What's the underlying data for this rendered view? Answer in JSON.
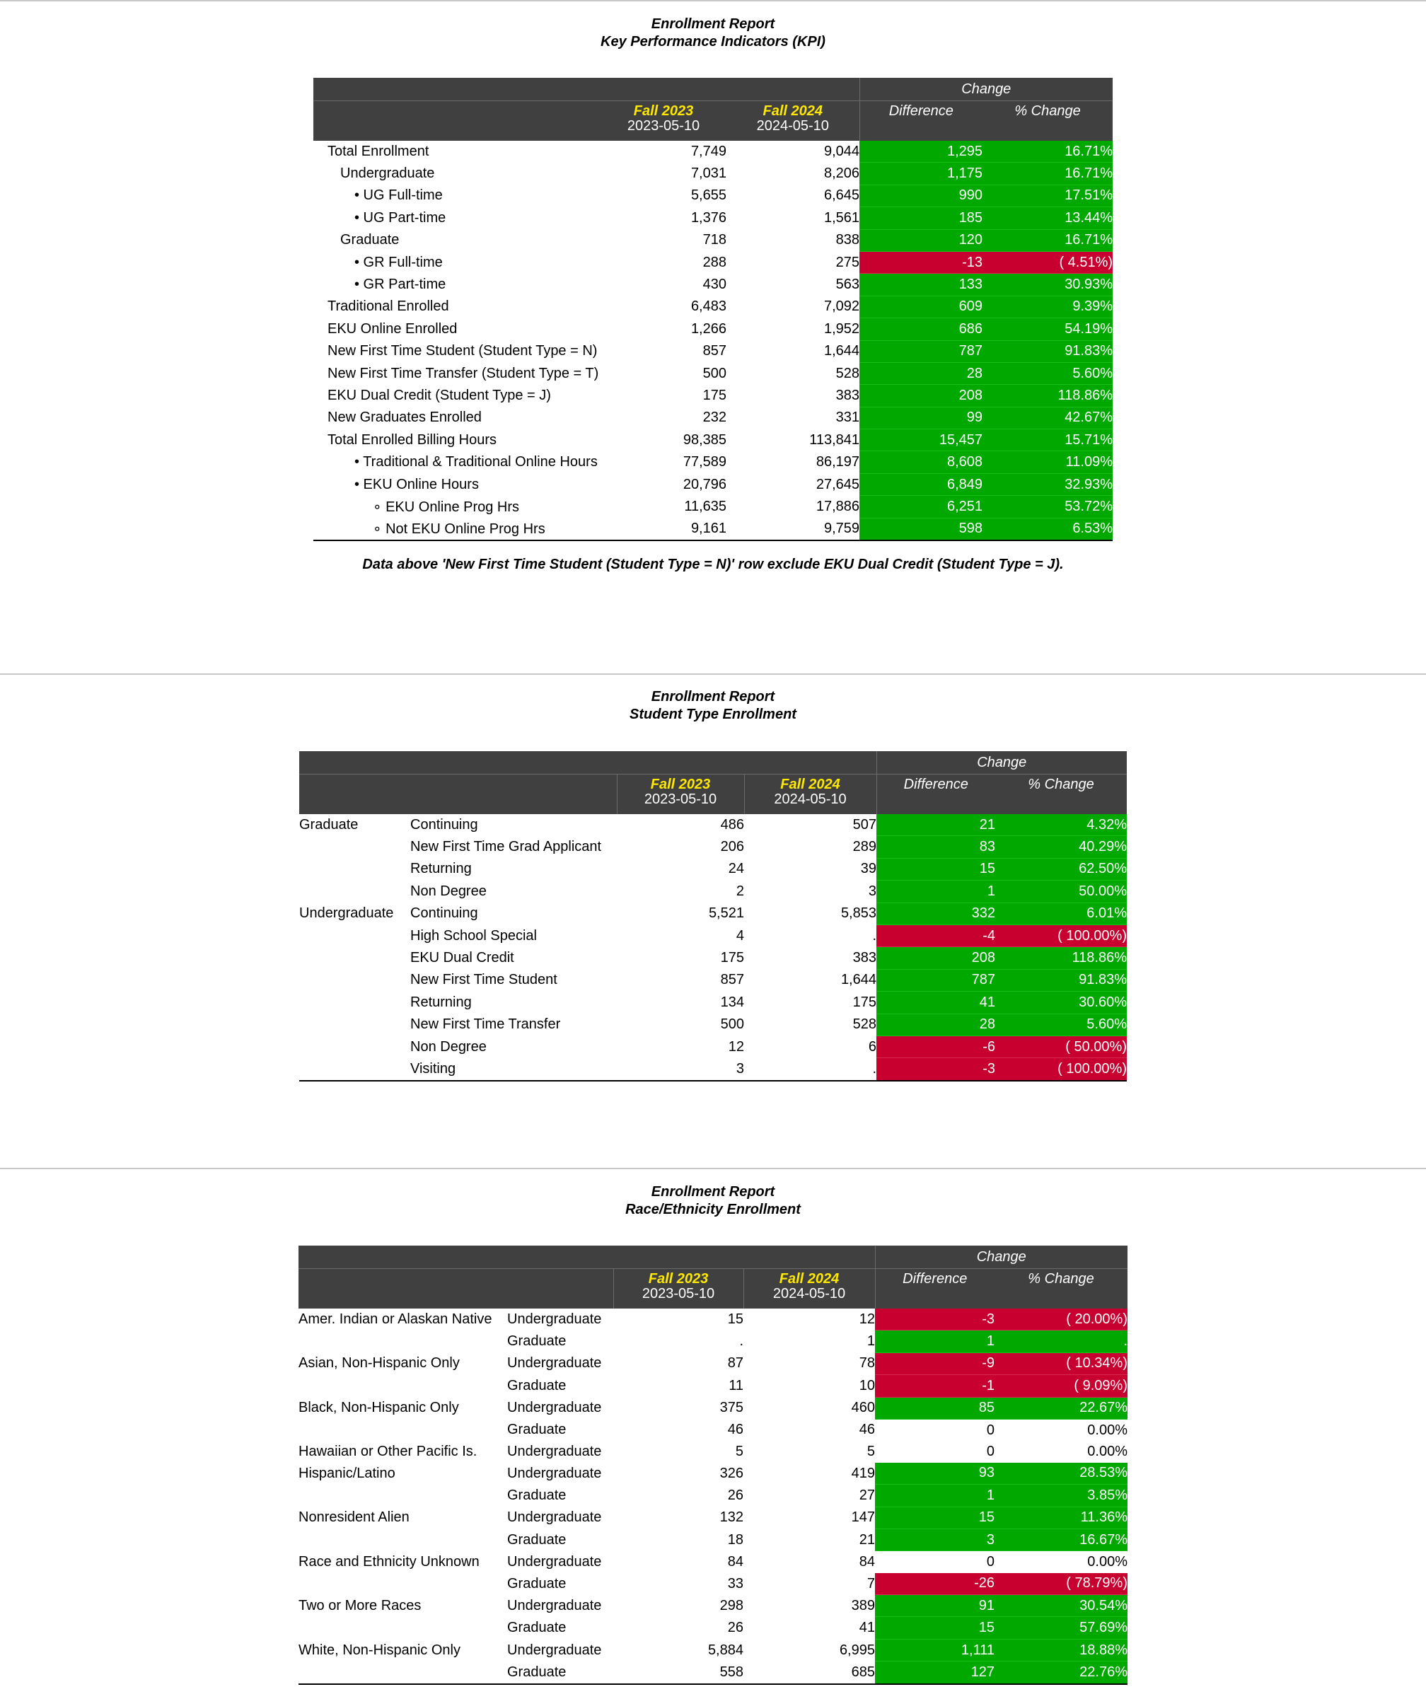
{
  "kpi": {
    "title": "Enrollment Report",
    "subtitle": "Key Performance Indicators (KPI)",
    "headers": {
      "change": "Change",
      "fall1": "Fall 2023",
      "date1": "2023-05-10",
      "fall2": "Fall 2024",
      "date2": "2024-05-10",
      "difference": "Difference",
      "pct": "% Change"
    },
    "rows": [
      {
        "label": "Total Enrollment",
        "indent": 0,
        "v1": "7,749",
        "v2": "9,044",
        "diff": "1,295",
        "pct": "16.71%",
        "status": "g"
      },
      {
        "label": "Undergraduate",
        "indent": 1,
        "v1": "7,031",
        "v2": "8,206",
        "diff": "1,175",
        "pct": "16.71%",
        "status": "g"
      },
      {
        "label": "• UG Full-time",
        "indent": 2,
        "v1": "5,655",
        "v2": "6,645",
        "diff": "990",
        "pct": "17.51%",
        "status": "g"
      },
      {
        "label": "• UG Part-time",
        "indent": 2,
        "v1": "1,376",
        "v2": "1,561",
        "diff": "185",
        "pct": "13.44%",
        "status": "g"
      },
      {
        "label": "Graduate",
        "indent": 1,
        "v1": "718",
        "v2": "838",
        "diff": "120",
        "pct": "16.71%",
        "status": "g"
      },
      {
        "label": "• GR Full-time",
        "indent": 2,
        "v1": "288",
        "v2": "275",
        "diff": "-13",
        "pct": "( 4.51%)",
        "status": "r"
      },
      {
        "label": "• GR Part-time",
        "indent": 2,
        "v1": "430",
        "v2": "563",
        "diff": "133",
        "pct": "30.93%",
        "status": "g"
      },
      {
        "label": "Traditional Enrolled",
        "indent": 0,
        "v1": "6,483",
        "v2": "7,092",
        "diff": "609",
        "pct": "9.39%",
        "status": "g"
      },
      {
        "label": "EKU Online Enrolled",
        "indent": 0,
        "v1": "1,266",
        "v2": "1,952",
        "diff": "686",
        "pct": "54.19%",
        "status": "g"
      },
      {
        "label": "New First Time Student (Student Type = N)",
        "indent": 0,
        "v1": "857",
        "v2": "1,644",
        "diff": "787",
        "pct": "91.83%",
        "status": "g"
      },
      {
        "label": "New First Time Transfer (Student Type = T)",
        "indent": 0,
        "v1": "500",
        "v2": "528",
        "diff": "28",
        "pct": "5.60%",
        "status": "g"
      },
      {
        "label": "EKU Dual Credit (Student Type = J)",
        "indent": 0,
        "v1": "175",
        "v2": "383",
        "diff": "208",
        "pct": "118.86%",
        "status": "g"
      },
      {
        "label": "New Graduates Enrolled",
        "indent": 0,
        "v1": "232",
        "v2": "331",
        "diff": "99",
        "pct": "42.67%",
        "status": "g"
      },
      {
        "label": "Total Enrolled Billing Hours",
        "indent": 0,
        "v1": "98,385",
        "v2": "113,841",
        "diff": "15,457",
        "pct": "15.71%",
        "status": "g"
      },
      {
        "label": "• Traditional & Traditional Online Hours",
        "indent": 2,
        "v1": "77,589",
        "v2": "86,197",
        "diff": "8,608",
        "pct": "11.09%",
        "status": "g"
      },
      {
        "label": "• EKU Online Hours",
        "indent": 2,
        "v1": "20,796",
        "v2": "27,645",
        "diff": "6,849",
        "pct": "32.93%",
        "status": "g"
      },
      {
        "label": "∘ EKU Online Prog Hrs",
        "indent": 3,
        "v1": "11,635",
        "v2": "17,886",
        "diff": "6,251",
        "pct": "53.72%",
        "status": "g"
      },
      {
        "label": "∘ Not EKU Online Prog Hrs",
        "indent": 3,
        "v1": "9,161",
        "v2": "9,759",
        "diff": "598",
        "pct": "6.53%",
        "status": "g"
      }
    ],
    "note": "Data above 'New First Time Student (Student Type = N)' row exclude EKU Dual Credit (Student Type = J)."
  },
  "student_type": {
    "title": "Enrollment Report",
    "subtitle": "Student Type Enrollment",
    "headers": {
      "change": "Change",
      "fall1": "Fall 2023",
      "date1": "2023-05-10",
      "fall2": "Fall 2024",
      "date2": "2024-05-10",
      "difference": "Difference",
      "pct": "% Change"
    },
    "rows": [
      {
        "group": "Graduate",
        "label": "Continuing",
        "v1": "486",
        "v2": "507",
        "diff": "21",
        "pct": "4.32%",
        "status": "g"
      },
      {
        "group": "",
        "label": "New First Time Grad Applicant",
        "v1": "206",
        "v2": "289",
        "diff": "83",
        "pct": "40.29%",
        "status": "g"
      },
      {
        "group": "",
        "label": "Returning",
        "v1": "24",
        "v2": "39",
        "diff": "15",
        "pct": "62.50%",
        "status": "g"
      },
      {
        "group": "",
        "label": "Non Degree",
        "v1": "2",
        "v2": "3",
        "diff": "1",
        "pct": "50.00%",
        "status": "g"
      },
      {
        "group": "Undergraduate",
        "label": "Continuing",
        "v1": "5,521",
        "v2": "5,853",
        "diff": "332",
        "pct": "6.01%",
        "status": "g"
      },
      {
        "group": "",
        "label": "High School Special",
        "v1": "4",
        "v2": ".",
        "diff": "-4",
        "pct": "( 100.00%)",
        "status": "r"
      },
      {
        "group": "",
        "label": "EKU Dual Credit",
        "v1": "175",
        "v2": "383",
        "diff": "208",
        "pct": "118.86%",
        "status": "g"
      },
      {
        "group": "",
        "label": "New First Time Student",
        "v1": "857",
        "v2": "1,644",
        "diff": "787",
        "pct": "91.83%",
        "status": "g"
      },
      {
        "group": "",
        "label": "Returning",
        "v1": "134",
        "v2": "175",
        "diff": "41",
        "pct": "30.60%",
        "status": "g"
      },
      {
        "group": "",
        "label": "New First Time Transfer",
        "v1": "500",
        "v2": "528",
        "diff": "28",
        "pct": "5.60%",
        "status": "g"
      },
      {
        "group": "",
        "label": "Non Degree",
        "v1": "12",
        "v2": "6",
        "diff": "-6",
        "pct": "( 50.00%)",
        "status": "r"
      },
      {
        "group": "",
        "label": "Visiting",
        "v1": "3",
        "v2": ".",
        "diff": "-3",
        "pct": "( 100.00%)",
        "status": "r"
      }
    ]
  },
  "race": {
    "title": "Enrollment Report",
    "subtitle": "Race/Ethnicity Enrollment",
    "headers": {
      "change": "Change",
      "fall1": "Fall 2023",
      "date1": "2023-05-10",
      "fall2": "Fall 2024",
      "date2": "2024-05-10",
      "difference": "Difference",
      "pct": "% Change"
    },
    "rows": [
      {
        "group": "Amer. Indian or Alaskan Native",
        "label": "Undergraduate",
        "v1": "15",
        "v2": "12",
        "diff": "-3",
        "pct": "( 20.00%)",
        "status": "r"
      },
      {
        "group": "",
        "label": "Graduate",
        "v1": ".",
        "v2": "1",
        "diff": "1",
        "pct": ".",
        "status": "g"
      },
      {
        "group": "Asian, Non-Hispanic Only",
        "label": "Undergraduate",
        "v1": "87",
        "v2": "78",
        "diff": "-9",
        "pct": "( 10.34%)",
        "status": "r"
      },
      {
        "group": "",
        "label": "Graduate",
        "v1": "11",
        "v2": "10",
        "diff": "-1",
        "pct": "( 9.09%)",
        "status": "r"
      },
      {
        "group": "Black, Non-Hispanic Only",
        "label": "Undergraduate",
        "v1": "375",
        "v2": "460",
        "diff": "85",
        "pct": "22.67%",
        "status": "g"
      },
      {
        "group": "",
        "label": "Graduate",
        "v1": "46",
        "v2": "46",
        "diff": "0",
        "pct": "0.00%",
        "status": "w"
      },
      {
        "group": "Hawaiian or Other Pacific Is.",
        "label": "Undergraduate",
        "v1": "5",
        "v2": "5",
        "diff": "0",
        "pct": "0.00%",
        "status": "w"
      },
      {
        "group": "Hispanic/Latino",
        "label": "Undergraduate",
        "v1": "326",
        "v2": "419",
        "diff": "93",
        "pct": "28.53%",
        "status": "g"
      },
      {
        "group": "",
        "label": "Graduate",
        "v1": "26",
        "v2": "27",
        "diff": "1",
        "pct": "3.85%",
        "status": "g"
      },
      {
        "group": "Nonresident Alien",
        "label": "Undergraduate",
        "v1": "132",
        "v2": "147",
        "diff": "15",
        "pct": "11.36%",
        "status": "g"
      },
      {
        "group": "",
        "label": "Graduate",
        "v1": "18",
        "v2": "21",
        "diff": "3",
        "pct": "16.67%",
        "status": "g"
      },
      {
        "group": "Race and Ethnicity Unknown",
        "label": "Undergraduate",
        "v1": "84",
        "v2": "84",
        "diff": "0",
        "pct": "0.00%",
        "status": "w"
      },
      {
        "group": "",
        "label": "Graduate",
        "v1": "33",
        "v2": "7",
        "diff": "-26",
        "pct": "( 78.79%)",
        "status": "r"
      },
      {
        "group": "Two or More Races",
        "label": "Undergraduate",
        "v1": "298",
        "v2": "389",
        "diff": "91",
        "pct": "30.54%",
        "status": "g"
      },
      {
        "group": "",
        "label": "Graduate",
        "v1": "26",
        "v2": "41",
        "diff": "15",
        "pct": "57.69%",
        "status": "g"
      },
      {
        "group": "White, Non-Hispanic Only",
        "label": "Undergraduate",
        "v1": "5,884",
        "v2": "6,995",
        "diff": "1,111",
        "pct": "18.88%",
        "status": "g"
      },
      {
        "group": "",
        "label": "Graduate",
        "v1": "558",
        "v2": "685",
        "diff": "127",
        "pct": "22.76%",
        "status": "g"
      }
    ]
  },
  "colors": {
    "header_bg": "#404040",
    "year_text": "#ffe800",
    "positive": "#00a800",
    "negative": "#c8002f"
  }
}
